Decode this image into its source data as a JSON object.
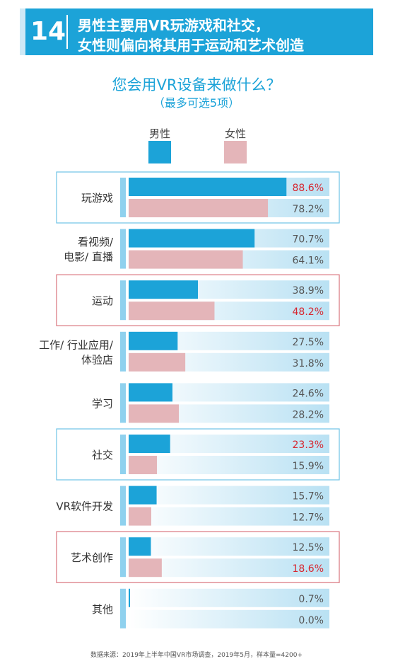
{
  "header": {
    "number": "14",
    "line1": "男性主要用VR玩游戏和社交，",
    "line2": "女性则偏向将其用于运动和艺术创造"
  },
  "colors": {
    "header_bg": "#1ca3d8",
    "male": "#1ca3d8",
    "female": "#e4b5b9",
    "highlight_male_box": "#6fc3e6",
    "highlight_female_box": "#d9737c",
    "highlight_value": "#d7262f"
  },
  "legend": {
    "male": "男性",
    "female": "女性"
  },
  "footer": "数据来源：2019年上半年中国VR市场调查，2019年5月，样本量=4200+",
  "chart_data": {
    "type": "bar",
    "orientation": "horizontal",
    "title": "您会用VR设备来做什么？",
    "subtitle": "（最多可选5项）",
    "xlim": [
      0,
      100
    ],
    "categories": [
      {
        "label": [
          "玩游戏"
        ],
        "box": "male"
      },
      {
        "label": [
          "看视频/",
          "电影/ 直播"
        ],
        "box": ""
      },
      {
        "label": [
          "运动"
        ],
        "box": "female"
      },
      {
        "label": [
          "工作/ 行业应用/",
          "体验店"
        ],
        "box": ""
      },
      {
        "label": [
          "学习"
        ],
        "box": ""
      },
      {
        "label": [
          "社交"
        ],
        "box": "male"
      },
      {
        "label": [
          "VR软件开发"
        ],
        "box": ""
      },
      {
        "label": [
          "艺术创作"
        ],
        "box": "female"
      },
      {
        "label": [
          "其他"
        ],
        "box": ""
      }
    ],
    "series": [
      {
        "name": "男性",
        "values": [
          88.6,
          70.7,
          38.9,
          27.5,
          24.6,
          23.3,
          15.7,
          12.5,
          0.7
        ],
        "labels": [
          "88.6%",
          "70.7%",
          "38.9%",
          "27.5%",
          "24.6%",
          "23.3%",
          "15.7%",
          "12.5%",
          "0.7%"
        ],
        "highlight": [
          true,
          false,
          false,
          false,
          false,
          true,
          false,
          false,
          false
        ]
      },
      {
        "name": "女性",
        "values": [
          78.2,
          64.1,
          48.2,
          31.8,
          28.2,
          15.9,
          12.7,
          18.6,
          0.0
        ],
        "labels": [
          "78.2%",
          "64.1%",
          "48.2%",
          "31.8%",
          "28.2%",
          "15.9%",
          "12.7%",
          "18.6%",
          "0.0%"
        ],
        "highlight": [
          false,
          false,
          true,
          false,
          false,
          false,
          false,
          true,
          false
        ]
      }
    ]
  }
}
